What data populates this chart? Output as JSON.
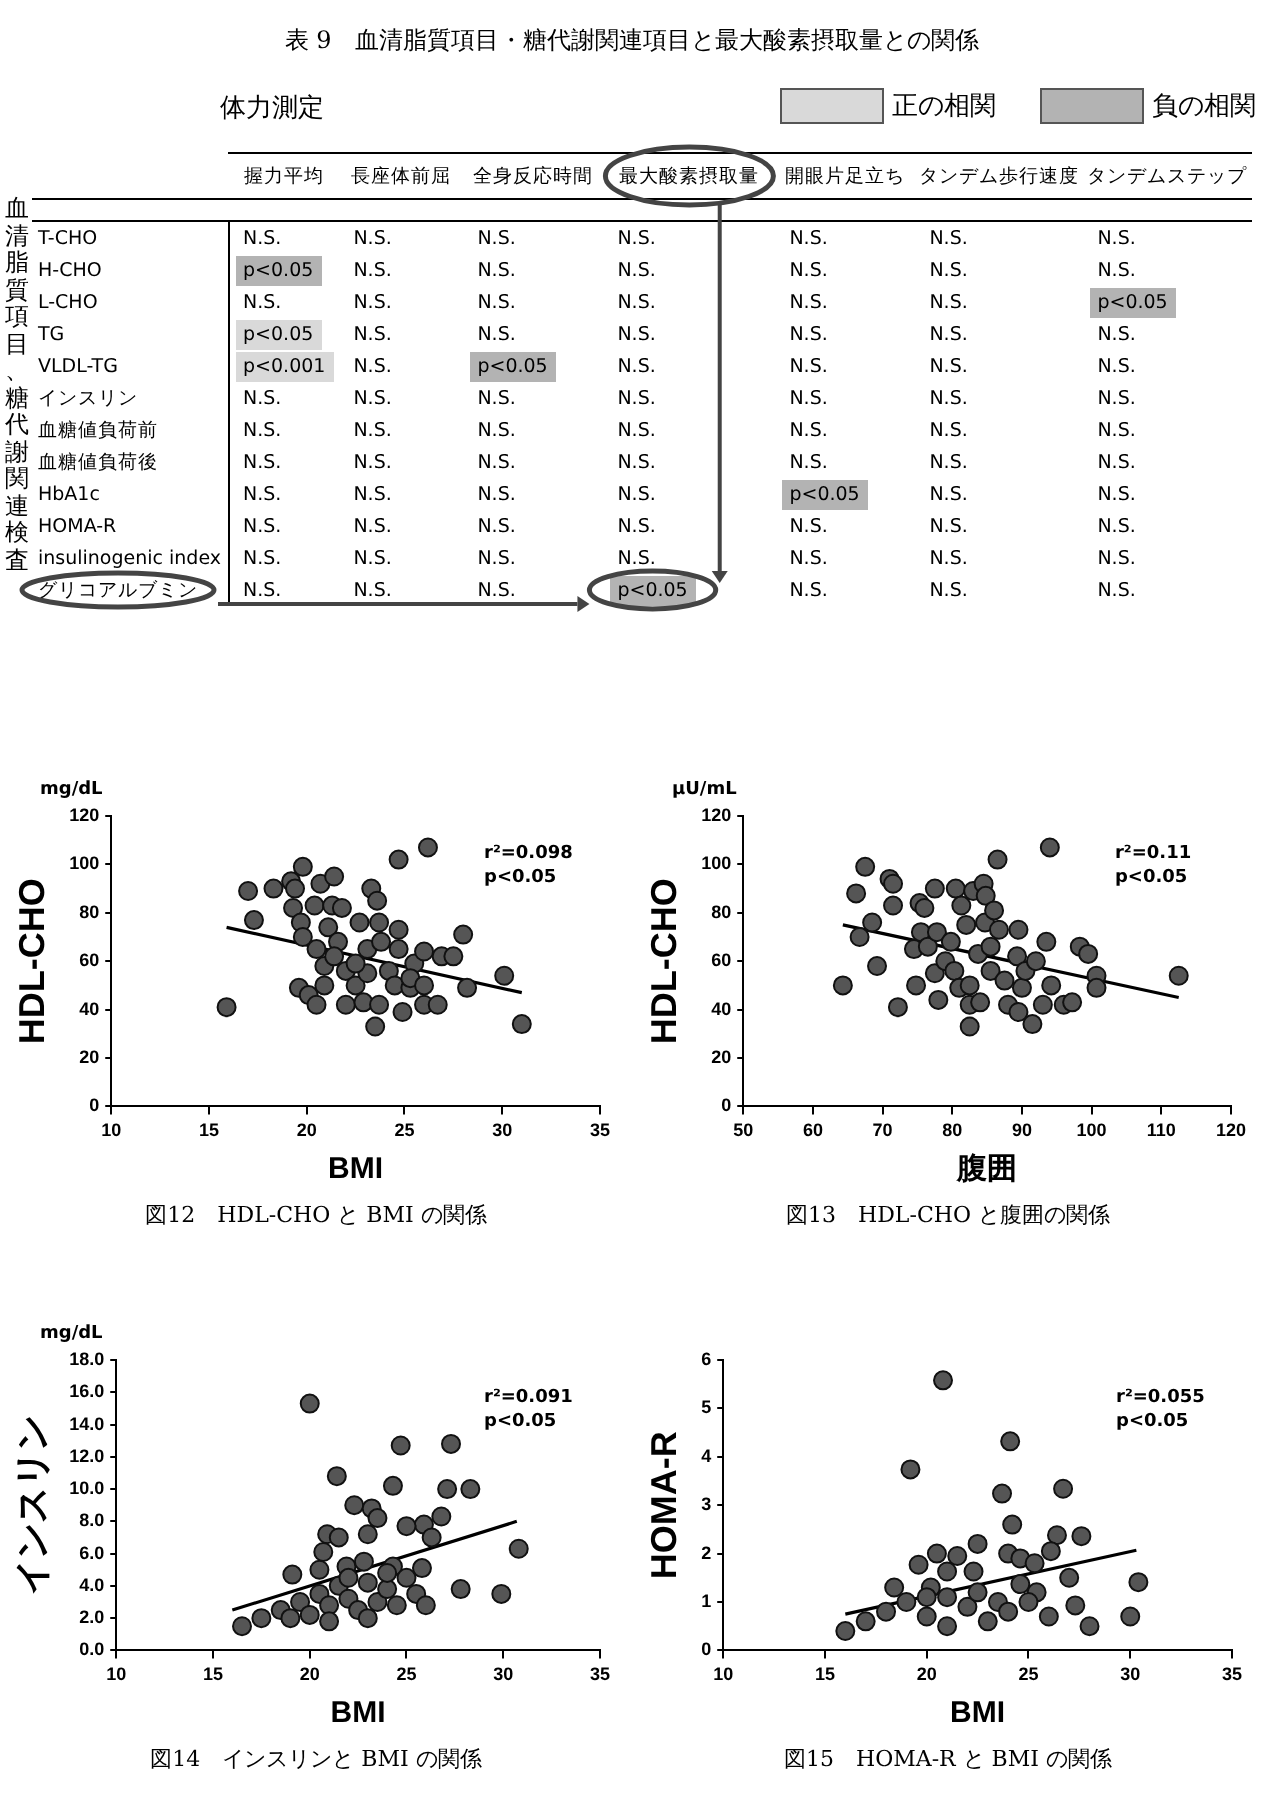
{
  "chart_data": [
    {
      "type": "other",
      "title": "表 9　血清脂質項目・糖代謝関連項目と最大酸素摂取量との関係",
      "subtitle": "体力測定",
      "annotations": [
        "正の相関",
        "負の相関"
      ],
      "ylabel": "血清脂質項目、糖代謝関連検査",
      "categories": [
        "握力平均",
        "長座体前屈",
        "全身反応時間",
        "最大酸素摂取量",
        "開眼片足立ち",
        "タンデム歩行速度",
        "タンデムステップ"
      ],
      "y_categories": [
        "T-CHO",
        "H-CHO",
        "L-CHO",
        "TG",
        "VLDL-TG",
        "インスリン",
        "血糖値負荷前",
        "血糖値負荷後",
        "HbA1c",
        "HOMA-R",
        "insulinogenic index",
        "グリコアルブミン"
      ],
      "cell_labels": [
        [
          "N.S.",
          "N.S.",
          "N.S.",
          "N.S.",
          "N.S.",
          "N.S.",
          "N.S."
        ],
        [
          "p<0.05",
          "N.S.",
          "N.S.",
          "N.S.",
          "N.S.",
          "N.S.",
          "N.S."
        ],
        [
          "N.S.",
          "N.S.",
          "N.S.",
          "N.S.",
          "N.S.",
          "N.S.",
          "p<0.05"
        ],
        [
          "p<0.05",
          "N.S.",
          "N.S.",
          "N.S.",
          "N.S.",
          "N.S.",
          "N.S."
        ],
        [
          "p<0.001",
          "N.S.",
          "p<0.05",
          "N.S.",
          "N.S.",
          "N.S.",
          "N.S."
        ],
        [
          "N.S.",
          "N.S.",
          "N.S.",
          "N.S.",
          "N.S.",
          "N.S.",
          "N.S."
        ],
        [
          "N.S.",
          "N.S.",
          "N.S.",
          "N.S.",
          "N.S.",
          "N.S.",
          "N.S."
        ],
        [
          "N.S.",
          "N.S.",
          "N.S.",
          "N.S.",
          "N.S.",
          "N.S.",
          "N.S."
        ],
        [
          "N.S.",
          "N.S.",
          "N.S.",
          "N.S.",
          "p<0.05",
          "N.S.",
          "N.S."
        ],
        [
          "N.S.",
          "N.S.",
          "N.S.",
          "N.S.",
          "N.S.",
          "N.S.",
          "N.S."
        ],
        [
          "N.S.",
          "N.S.",
          "N.S.",
          "N.S.",
          "N.S.",
          "N.S.",
          "N.S."
        ],
        [
          "N.S.",
          "N.S.",
          "N.S.",
          "p<0.05",
          "N.S.",
          "N.S.",
          "N.S."
        ]
      ],
      "colors": [
        [
          null,
          null,
          null,
          null,
          null,
          null,
          null
        ],
        [
          "#b3b3b3",
          null,
          null,
          null,
          null,
          null,
          null
        ],
        [
          null,
          null,
          null,
          null,
          null,
          null,
          "#b3b3b3"
        ],
        [
          "#d9d9d9",
          null,
          null,
          null,
          null,
          null,
          null
        ],
        [
          "#d9d9d9",
          null,
          "#b3b3b3",
          null,
          null,
          null,
          null
        ],
        [
          null,
          null,
          null,
          null,
          null,
          null,
          null
        ],
        [
          null,
          null,
          null,
          null,
          null,
          null,
          null
        ],
        [
          null,
          null,
          null,
          null,
          null,
          null,
          null
        ],
        [
          null,
          null,
          null,
          null,
          "#b3b3b3",
          null,
          null
        ],
        [
          null,
          null,
          null,
          null,
          null,
          null,
          null
        ],
        [
          null,
          null,
          null,
          null,
          null,
          null,
          null
        ],
        [
          null,
          null,
          null,
          "#b3b3b3",
          null,
          null,
          null
        ]
      ]
    },
    {
      "type": "scatter",
      "title": "図12　HDL-CHO と BMI の関係",
      "subtitle": "mg/dL",
      "xlabel": "BMI",
      "ylabel": "HDL-CHO",
      "marker": "circle",
      "xlim": [
        10,
        35
      ],
      "xticks": [
        10,
        15,
        20,
        25,
        30,
        35
      ],
      "ylim": [
        0,
        120
      ],
      "yticks": [
        0,
        20,
        40,
        60,
        80,
        100,
        120
      ],
      "annotations": [
        "r²=0.098",
        "p<0.05"
      ],
      "series": [
        {
          "color": "#555555",
          "x": [
            15.9,
            17,
            17.3,
            18.3,
            19.2,
            19.4,
            19.8,
            19.3,
            19.7,
            19.8,
            20.7,
            21.4,
            20.4,
            21.3,
            21.8,
            22.7,
            23.3,
            23.6,
            23.7,
            24.7,
            26.2,
            24.7,
            19.6,
            20.1,
            20.5,
            20.9,
            20.5,
            21.1,
            21.6,
            20.9,
            22,
            22.5,
            22,
            23.1,
            22.9,
            23.5,
            23.7,
            24.2,
            24.5,
            24.9,
            24.7,
            25.3,
            25.5,
            26,
            26,
            26.7,
            26.9,
            27.5,
            28,
            28.2,
            30.1,
            31,
            23.1,
            23.8,
            22.5,
            21.4,
            25.3,
            26
          ],
          "values": [
            41,
            89,
            77,
            90,
            93,
            90,
            99,
            82,
            76,
            70,
            92,
            95,
            83,
            83,
            82,
            76,
            90,
            85,
            76,
            102,
            107,
            73,
            49,
            46,
            42,
            50,
            65,
            74,
            68,
            58,
            56,
            50,
            42,
            55,
            43,
            33,
            42,
            56,
            50,
            39,
            65,
            49,
            59,
            64,
            42,
            42,
            62,
            62,
            71,
            49,
            54,
            34,
            65,
            68,
            59,
            62,
            53,
            50
          ]
        },
        {
          "type": "line",
          "marker": "none",
          "color": "#000000",
          "x": [
            15.9,
            31
          ],
          "values": [
            74,
            47
          ]
        }
      ]
    },
    {
      "type": "scatter",
      "title": "図13　HDL-CHO と腹囲の関係",
      "subtitle": "μU/mL",
      "xlabel": "腹囲",
      "ylabel": "HDL-CHO",
      "marker": "circle",
      "xlim": [
        50,
        120
      ],
      "xticks": [
        50,
        60,
        70,
        80,
        90,
        100,
        110,
        120
      ],
      "ylim": [
        0,
        120
      ],
      "yticks": [
        0,
        20,
        40,
        60,
        80,
        100,
        120
      ],
      "annotations": [
        "r²=0.11",
        "p<0.05"
      ],
      "series": [
        {
          "color": "#555555",
          "x": [
            64.3,
            66.2,
            67.5,
            66.7,
            68.5,
            69.2,
            71,
            71.5,
            71.5,
            72.2,
            74.5,
            74.8,
            75.3,
            76,
            75.5,
            76.5,
            77.5,
            77.8,
            77.5,
            78,
            79.8,
            79,
            80.5,
            81.3,
            80.3,
            81,
            82,
            82.5,
            82.5,
            82.5,
            83,
            83.7,
            84,
            84.5,
            84.8,
            84.7,
            85.5,
            86,
            86.5,
            86.7,
            85.5,
            87.5,
            88,
            89.5,
            89.5,
            89.3,
            90,
            90.5,
            91.5,
            92,
            93,
            93.5,
            94,
            94.2,
            96,
            97.2,
            98.3,
            99.5,
            100.7,
            100.7,
            112.5
          ],
          "values": [
            50,
            88,
            99,
            70,
            76,
            58,
            94,
            92,
            83,
            41,
            65,
            50,
            84,
            82,
            72,
            66,
            90,
            72,
            55,
            44,
            68,
            60,
            90,
            83,
            56,
            49,
            75,
            50,
            42,
            33,
            89,
            63,
            43,
            92,
            87,
            76,
            66,
            81,
            102,
            73,
            56,
            52,
            42,
            73,
            39,
            62,
            49,
            56,
            34,
            60,
            42,
            68,
            107,
            50,
            42,
            43,
            66,
            63,
            54,
            49,
            54
          ]
        },
        {
          "type": "line",
          "marker": "none",
          "color": "#000000",
          "x": [
            64.3,
            112.5
          ],
          "values": [
            75,
            45
          ]
        }
      ]
    },
    {
      "type": "scatter",
      "title": "図14　インスリンと BMI の関係",
      "subtitle": "mg/dL",
      "xlabel": "BMI",
      "ylabel": "インスリン",
      "marker": "circle",
      "xlim": [
        10,
        35
      ],
      "xticks": [
        10,
        15,
        20,
        25,
        30,
        35
      ],
      "ylim": [
        0,
        18
      ],
      "yticks": [
        {
          "value": 0,
          "label": "0.0"
        },
        {
          "value": 2,
          "label": "2.0"
        },
        {
          "value": 4,
          "label": "4.0"
        },
        {
          "value": 6,
          "label": "6.0"
        },
        {
          "value": 8,
          "label": "8.0"
        },
        {
          "value": 10,
          "label": "10.0"
        },
        {
          "value": 12,
          "label": "12.0"
        },
        {
          "value": 14,
          "label": "14.0"
        },
        {
          "value": 16,
          "label": "16.0"
        },
        {
          "value": 18,
          "label": "18.0"
        }
      ],
      "annotations": [
        "r²=0.091",
        "p<0.05"
      ],
      "series": [
        {
          "color": "#555555",
          "x": [
            20,
            24.7,
            27.3,
            21.4,
            24.3,
            27.1,
            28.3,
            22.3,
            23.2,
            26.8,
            25.9,
            25,
            20.9,
            21.5,
            23,
            26.3,
            23.5,
            20.7,
            30.8,
            19.1,
            20.5,
            21.9,
            22.8,
            24.3,
            25.8,
            27.8,
            29.9,
            16.5,
            17.5,
            18.5,
            19.5,
            20,
            20.5,
            21,
            21.5,
            22,
            22.5,
            23,
            23.5,
            24,
            24.5,
            25,
            25.5,
            26,
            19,
            21,
            23,
            24,
            22
          ],
          "values": [
            15.3,
            12.7,
            12.8,
            10.8,
            10.2,
            10,
            10,
            9,
            8.8,
            8.3,
            7.8,
            7.7,
            7.2,
            7,
            7.2,
            7,
            8.2,
            6.1,
            6.3,
            4.7,
            5,
            5.2,
            5.5,
            5.2,
            5.1,
            3.8,
            3.5,
            1.5,
            2,
            2.5,
            3,
            2.2,
            3.5,
            2.8,
            4,
            3.2,
            2.5,
            4.2,
            3,
            3.8,
            2.8,
            4.5,
            3.5,
            2.8,
            2,
            1.8,
            2,
            4.8,
            4.5
          ]
        },
        {
          "type": "line",
          "marker": "none",
          "color": "#000000",
          "x": [
            16,
            30.7
          ],
          "values": [
            2.5,
            8
          ]
        }
      ]
    },
    {
      "type": "scatter",
      "title": "図15　HOMA-R と BMI の関係",
      "xlabel": "BMI",
      "ylabel": "HOMA-R",
      "marker": "circle",
      "xlim": [
        10,
        35
      ],
      "xticks": [
        10,
        15,
        20,
        25,
        30,
        35
      ],
      "ylim": [
        0,
        6
      ],
      "yticks": [
        0,
        1,
        2,
        3,
        4,
        5,
        6
      ],
      "annotations": [
        "r²=0.055",
        "p<0.05"
      ],
      "series": [
        {
          "color": "#555555",
          "x": [
            20.8,
            24.1,
            19.2,
            23.7,
            26.7,
            24.2,
            26.4,
            27.6,
            22.5,
            20.5,
            21.5,
            24,
            24.6,
            26.1,
            19.6,
            21,
            22.3,
            25.3,
            18.4,
            20.2,
            24.6,
            25.4,
            30.4,
            27.3,
            16,
            17,
            18,
            19,
            20,
            21,
            22,
            22.5,
            23,
            23.5,
            24,
            25,
            26,
            27,
            28,
            30,
            21,
            20
          ],
          "values": [
            5.58,
            4.32,
            3.74,
            3.24,
            3.34,
            2.6,
            2.38,
            2.36,
            2.2,
            2,
            1.95,
            2,
            1.9,
            2.05,
            1.77,
            1.63,
            1.63,
            1.8,
            1.3,
            1.3,
            1.37,
            1.2,
            1.41,
            0.93,
            0.4,
            0.6,
            0.8,
            1,
            0.7,
            1.1,
            0.9,
            1.2,
            0.6,
            1,
            0.8,
            1,
            0.7,
            1.5,
            0.5,
            0.7,
            0.5,
            1.1
          ]
        },
        {
          "type": "line",
          "marker": "none",
          "color": "#000000",
          "x": [
            16,
            30.3
          ],
          "values": [
            0.75,
            2.07
          ]
        }
      ]
    }
  ]
}
